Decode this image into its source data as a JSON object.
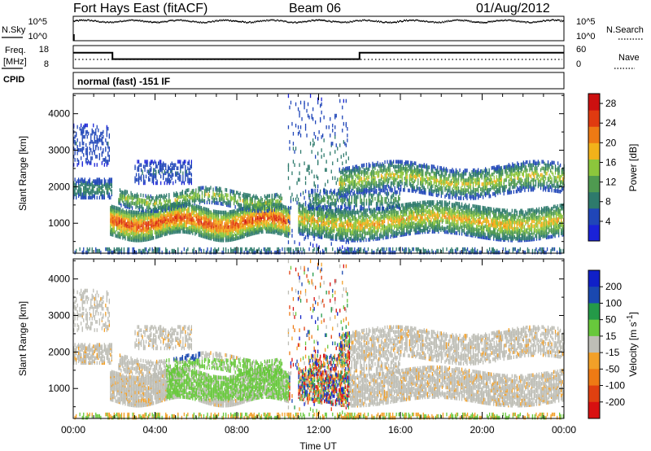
{
  "header": {
    "station": "Fort Hays East (fitACF)",
    "beam": "Beam 06",
    "date": "01/Aug/2012"
  },
  "small_panels": {
    "nsky_label": "N.Sky",
    "nsearch_label": "N.Search",
    "freq_label_top": "Freq.",
    "freq_label_unit": "[MHz]",
    "nave_label": "Nave",
    "cpid_label": "CPID",
    "cpid_text": "normal (fast) -151 IF",
    "noise_ticks": [
      "10^5",
      "10^0"
    ],
    "freq_ticks": [
      "18",
      "8"
    ],
    "nave_ticks": [
      "60",
      "0"
    ]
  },
  "colors": {
    "power_scale": [
      "#1a22d8",
      "#2046b8",
      "#2e7a6c",
      "#4f9a50",
      "#8cc63c",
      "#f2b21a",
      "#ee7a14",
      "#e03a10",
      "#cc1010"
    ],
    "velocity_scale": [
      "#1020c8",
      "#1a48b0",
      "#249a48",
      "#68c83c",
      "#bebeb6",
      "#f2a028",
      "#ee7a14",
      "#e04010",
      "#d81010"
    ],
    "background": "#ffffff",
    "ink": "#000000"
  },
  "chart_data": [
    {
      "type": "line",
      "name": "noise",
      "y_ticks": [
        "10^5",
        "10^0"
      ],
      "xlim": [
        "00:00",
        "24:00"
      ],
      "description_series": [
        {
          "name": "N.Sky",
          "approx_log10": 4.4
        },
        {
          "name": "N.Search",
          "approx_log10": 4.5
        }
      ]
    },
    {
      "type": "line",
      "name": "frequency",
      "y_ticks_left": [
        18,
        8
      ],
      "y_ticks_right": [
        60,
        0
      ],
      "series": [
        {
          "name": "Freq.",
          "unit": "MHz",
          "x": [
            "00:00",
            "01:55",
            "01:55",
            "14:00",
            "14:00",
            "24:00"
          ],
          "values": [
            14.6,
            14.6,
            11.6,
            11.6,
            14.6,
            14.6
          ]
        },
        {
          "name": "Nave",
          "x": [
            "00:00",
            "24:00"
          ],
          "values": [
            5,
            5
          ]
        }
      ]
    },
    {
      "type": "heatmap",
      "name": "power",
      "ylabel": "Slant Range [km]",
      "ylim": [
        180,
        4550
      ],
      "yticks": [
        1000,
        2000,
        3000,
        4000
      ],
      "xlim_hours": [
        0,
        24
      ],
      "colorbar": {
        "label": "Power [dB]",
        "range": [
          0,
          30
        ],
        "ticks": [
          4,
          8,
          12,
          16,
          20,
          24,
          28
        ]
      },
      "features": [
        {
          "band": "main echo",
          "start_hr": 1.8,
          "end_hr": 10.5,
          "range_km": [
            650,
            1500
          ],
          "peak_db": 28
        },
        {
          "band": "afternoon echo",
          "start_hr": 11.0,
          "end_hr": 24.0,
          "range_km": [
            600,
            1500
          ],
          "peak_db": 22
        },
        {
          "band": "far range",
          "start_hr": 13.0,
          "end_hr": 24.0,
          "range_km": [
            1800,
            2700
          ],
          "peak_db": 20
        }
      ]
    },
    {
      "type": "heatmap",
      "name": "velocity",
      "ylabel": "Slant Range [km]",
      "xlabel": "Time UT",
      "ylim": [
        180,
        4550
      ],
      "yticks": [
        1000,
        2000,
        3000,
        4000
      ],
      "xticks": [
        "00:00",
        "04:00",
        "08:00",
        "12:00",
        "16:00",
        "20:00",
        "00:00"
      ],
      "colorbar": {
        "label": "Velocity [m s",
        "label_superscript": "-1",
        "label_end": "]",
        "ticks": [
          "200",
          "100",
          "50",
          "15",
          "-15",
          "-50",
          "-100",
          "-200"
        ]
      }
    }
  ]
}
